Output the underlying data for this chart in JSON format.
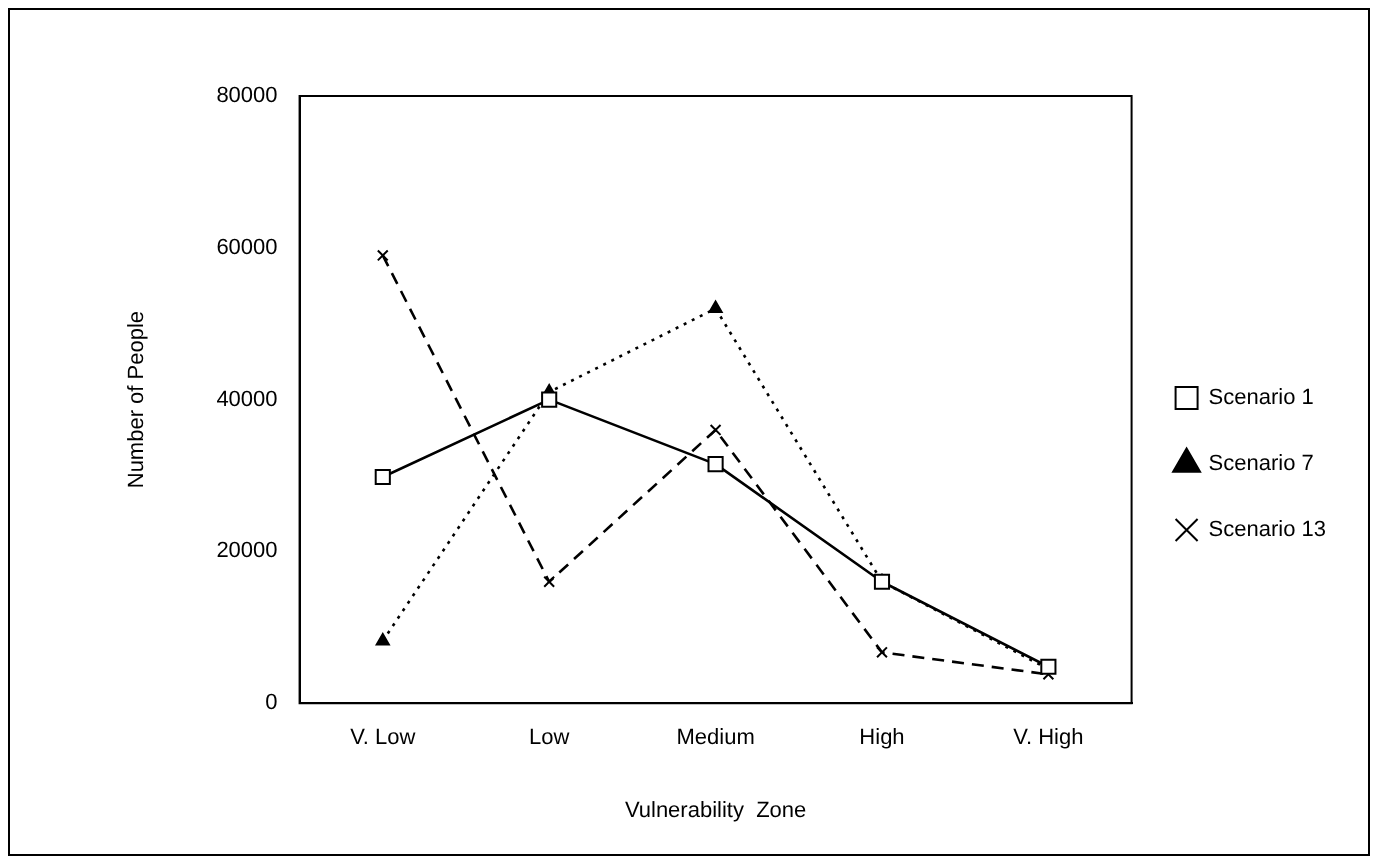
{
  "chart_data": {
    "type": "line",
    "xlabel": "Vulnerability  Zone",
    "ylabel": "Number of People",
    "categories": [
      "V. Low",
      "Low",
      "Medium",
      "High",
      "V. High"
    ],
    "series": [
      {
        "name": "Scenario 1",
        "color": "#000000",
        "values": [
          29800,
          40000,
          31500,
          16000,
          4800
        ],
        "marker": "square",
        "line_style": "solid"
      },
      {
        "name": "Scenario 7",
        "color": "#000000",
        "values": [
          8200,
          41000,
          52000,
          16000,
          4500
        ],
        "marker": "triangle",
        "line_style": "dotted"
      },
      {
        "name": "Scenario 13",
        "color": "#000000",
        "values": [
          59000,
          16000,
          36000,
          6700,
          3800
        ],
        "marker": "cross",
        "line_style": "dashed"
      }
    ],
    "ylim": [
      0,
      80000
    ],
    "yticks": [
      0,
      20000,
      40000,
      60000,
      80000
    ],
    "grid": false,
    "legend": "right"
  }
}
